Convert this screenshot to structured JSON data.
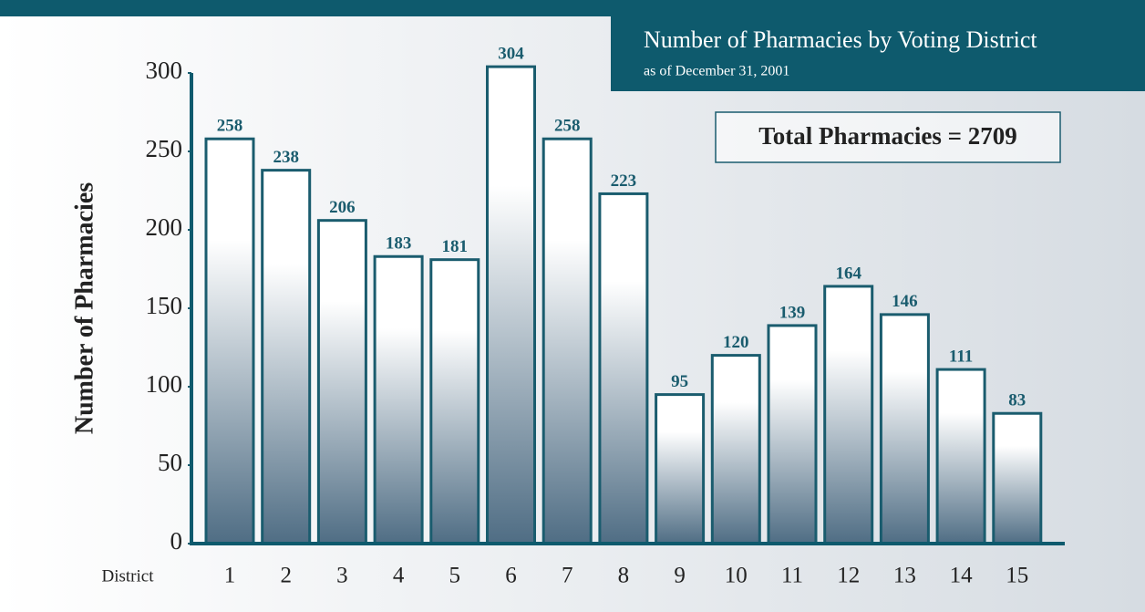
{
  "chart_data": {
    "type": "bar",
    "title": "Number of Pharmacies by Voting District",
    "subtitle": "as of December 31, 2001",
    "annotation": "Total Pharmacies = 2709",
    "y_label": "Number of Pharmacies",
    "x_label": "District",
    "categories": [
      "1",
      "2",
      "3",
      "4",
      "5",
      "6",
      "7",
      "8",
      "9",
      "10",
      "11",
      "12",
      "13",
      "14",
      "15"
    ],
    "values": [
      258,
      238,
      206,
      183,
      181,
      304,
      258,
      223,
      95,
      120,
      139,
      164,
      146,
      111,
      83
    ],
    "color": "#4f6d84",
    "ylim": [
      0,
      300
    ],
    "yticks": [
      0,
      50,
      100,
      150,
      200,
      250,
      300
    ],
    "grid": false
  }
}
